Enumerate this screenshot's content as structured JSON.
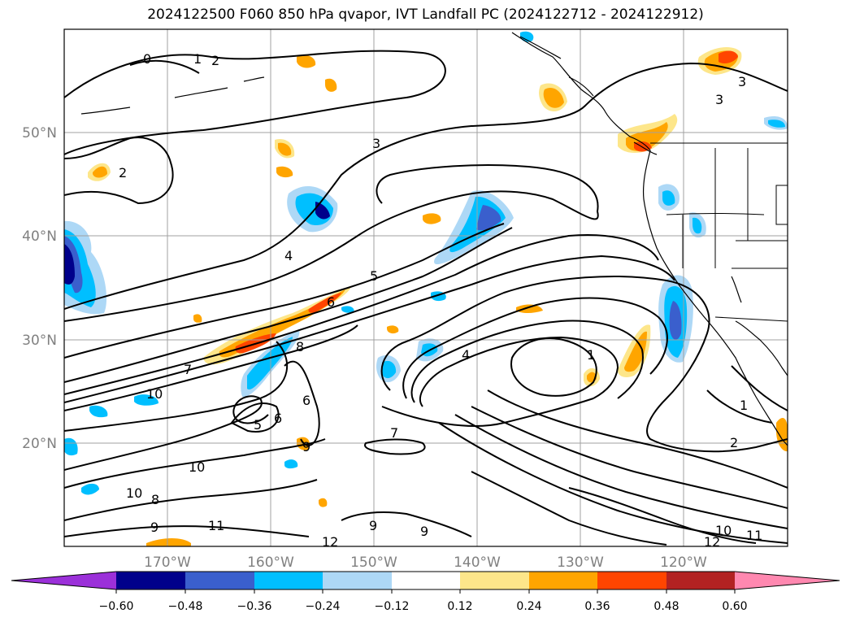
{
  "title": "2024122500 F060 850 hPa qvapor, IVT Landfall PC (2024122712 - 2024122912)",
  "map": {
    "lon_range": [
      -180,
      -110
    ],
    "lat_range": [
      10,
      60
    ],
    "xticks": [
      "170°W",
      "160°W",
      "150°W",
      "140°W",
      "130°W",
      "120°W"
    ],
    "yticks": [
      "50°N",
      "40°N",
      "30°N",
      "20°N"
    ],
    "contour_labels": [
      "0",
      "1",
      "2",
      "2",
      "3",
      "3",
      "3",
      "4",
      "5",
      "6",
      "6",
      "7",
      "8",
      "10",
      "5",
      "6",
      "9",
      "4",
      "1",
      "1",
      "7",
      "10",
      "8",
      "10",
      "9",
      "11",
      "9",
      "9",
      "12",
      "2",
      "10",
      "11",
      "12"
    ]
  },
  "colorbar": {
    "ticks": [
      "−0.60",
      "−0.48",
      "−0.36",
      "−0.24",
      "−0.12",
      "0.12",
      "0.24",
      "0.36",
      "0.48",
      "0.60"
    ],
    "colors": {
      "under": "#9b30d9",
      "c1": "#00008b",
      "c2": "#3a5fcd",
      "c3": "#00bfff",
      "c4": "#add8f6",
      "c5": "#ffffff",
      "c6": "#fde68a",
      "c7": "#ffa500",
      "c8": "#ff4500",
      "c9": "#b22222",
      "over": "#ff88b0"
    }
  }
}
